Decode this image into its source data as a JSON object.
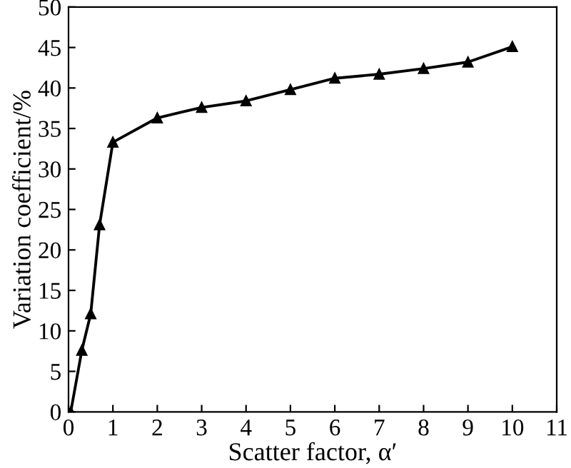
{
  "chart_data": {
    "type": "line",
    "xlabel": "Scatter factor, α′",
    "ylabel": "Variation coefficient/%",
    "x": [
      0.05,
      0.3,
      0.5,
      0.7,
      1,
      2,
      3,
      4,
      5,
      6,
      7,
      8,
      9,
      10
    ],
    "series": [
      {
        "color": "#000000",
        "values": [
          0,
          7.6,
          12.1,
          23.1,
          33.3,
          36.3,
          37.6,
          38.4,
          39.8,
          41.2,
          41.7,
          42.4,
          43.2,
          45.1
        ]
      }
    ],
    "xlim": [
      0,
      11
    ],
    "ylim": [
      0,
      50
    ],
    "xticks": [
      0,
      1,
      2,
      3,
      4,
      5,
      6,
      7,
      8,
      9,
      10,
      11
    ],
    "yticks": [
      0,
      5,
      10,
      15,
      20,
      25,
      30,
      35,
      40,
      45,
      50
    ],
    "marker": "triangle",
    "line_style": "solid",
    "grid": false
  }
}
